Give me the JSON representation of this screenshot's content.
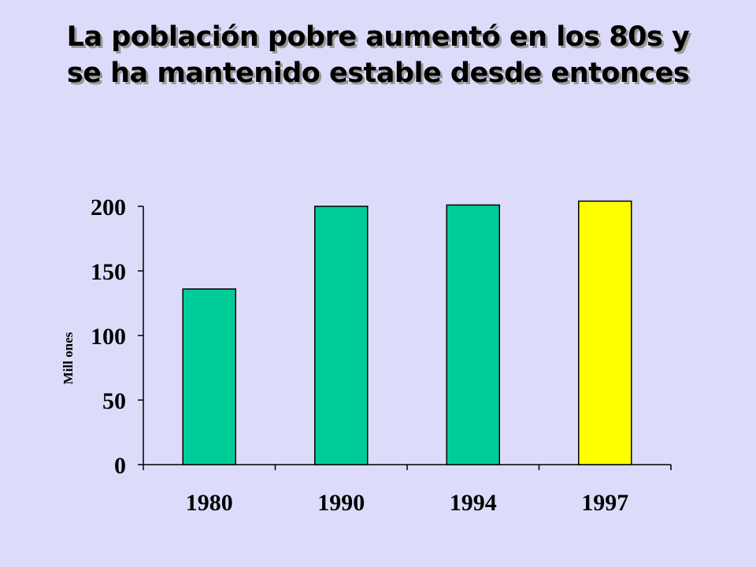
{
  "chart_data": {
    "type": "bar",
    "title_lines": [
      "La población pobre aumentó en los 80s y",
      "se ha mantenido estable desde entonces"
    ],
    "xlabel": "",
    "ylabel": "Mill ones",
    "categories": [
      "1980",
      "1990",
      "1994",
      "1997"
    ],
    "values": [
      136,
      200,
      201,
      204
    ],
    "bar_colors": [
      "#00cc99",
      "#00cc99",
      "#00cc99",
      "#ffff00"
    ],
    "ylim": [
      0,
      200
    ],
    "yticks": [
      0,
      50,
      100,
      150,
      200
    ],
    "grid": false,
    "legend": "none"
  },
  "colors": {
    "background": "#dcdcfa",
    "primary_bar": "#00cc99",
    "highlight_bar": "#ffff00"
  }
}
